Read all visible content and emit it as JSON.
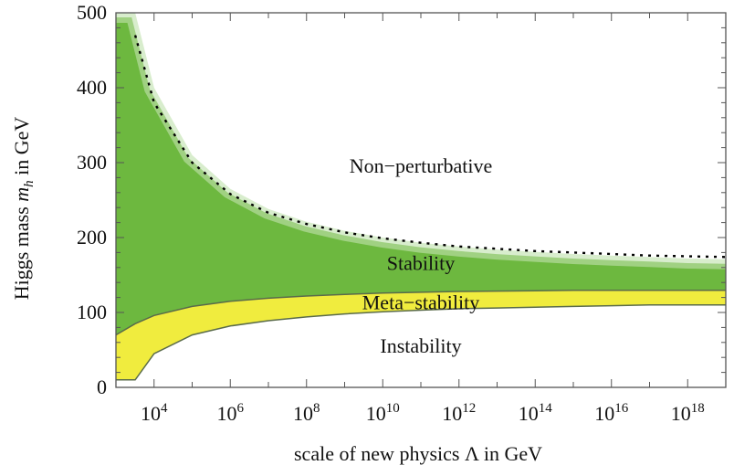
{
  "chart_data": {
    "type": "area",
    "xlabel": "scale of new physics Λ in GeV",
    "ylabel_prefix": "Higgs mass ",
    "ylabel_symbol": "m",
    "ylabel_subscript": "h",
    "ylabel_suffix": " in GeV",
    "x_scale": "log10",
    "xlim": [
      1000,
      1e+19
    ],
    "ylim": [
      0,
      500
    ],
    "x_tick_labels": [
      {
        "base": "10",
        "exp": "4",
        "value": 10000.0
      },
      {
        "base": "10",
        "exp": "6",
        "value": 1000000.0
      },
      {
        "base": "10",
        "exp": "8",
        "value": 100000000.0
      },
      {
        "base": "10",
        "exp": "10",
        "value": 10000000000.0
      },
      {
        "base": "10",
        "exp": "12",
        "value": 1000000000000.0
      },
      {
        "base": "10",
        "exp": "14",
        "value": 100000000000000.0
      },
      {
        "base": "10",
        "exp": "16",
        "value": 1e+16
      },
      {
        "base": "10",
        "exp": "18",
        "value": 1e+18
      }
    ],
    "y_tick_labels": [
      "0",
      "100",
      "200",
      "300",
      "400",
      "500"
    ],
    "y_tick_values": [
      0,
      100,
      200,
      300,
      400,
      500
    ],
    "regions": [
      {
        "label": "Non−perturbative",
        "anchor_x": 100000000000.0,
        "anchor_y": 295
      },
      {
        "label": "Stability",
        "anchor_x": 100000000000.0,
        "anchor_y": 165
      },
      {
        "label": "Meta−stability",
        "anchor_x": 100000000000.0,
        "anchor_y": 113
      },
      {
        "label": "Instability",
        "anchor_x": 100000000000.0,
        "anchor_y": 55
      }
    ],
    "perturbativity_bound": {
      "x": [
        1000,
        3200,
        10000,
        100000.0,
        1000000.0,
        10000000.0,
        100000000.0,
        1000000000.0,
        10000000000.0,
        100000000000.0,
        1000000000000.0,
        10000000000000.0,
        100000000000000.0,
        1000000000000000.0,
        1e+16,
        1e+17,
        1e+18,
        1e+19
      ],
      "y": [
        500,
        500,
        400,
        310,
        265,
        238,
        221,
        209,
        200,
        193,
        188,
        184,
        181,
        178,
        176,
        174,
        172,
        171
      ]
    },
    "stability_bound": {
      "x": [
        1000,
        3200,
        10000,
        100000.0,
        1000000.0,
        10000000.0,
        100000000.0,
        1000000000.0,
        10000000000.0,
        100000000000.0,
        1000000000000.0,
        10000000000000.0,
        100000000000000.0,
        1000000000000000.0,
        1e+16,
        1e+17,
        1e+18,
        1e+19
      ],
      "y": [
        70,
        85,
        96,
        108,
        115,
        119,
        122,
        124,
        126,
        127,
        128,
        128.5,
        129,
        129.5,
        129.5,
        129.5,
        129.5,
        129.5
      ]
    },
    "metastability_bound": {
      "x": [
        1000,
        3200,
        10000,
        100000.0,
        1000000.0,
        10000000.0,
        100000000.0,
        1000000000.0,
        10000000000.0,
        100000000000.0,
        1000000000000.0,
        10000000000000.0,
        100000000000000.0,
        1000000000000000.0,
        1e+16,
        1e+17,
        1e+18,
        1e+19
      ],
      "y": [
        10,
        10,
        45,
        70,
        82,
        89,
        94,
        98,
        101,
        103,
        105,
        106,
        107,
        108,
        109,
        110,
        110,
        110
      ]
    },
    "dotted_curve": {
      "x": [
        3200,
        10000,
        100000.0,
        1000000.0,
        10000000.0,
        100000000.0,
        1000000000.0,
        10000000000.0,
        100000000000.0,
        1000000000000.0,
        10000000000000.0,
        100000000000000.0,
        1000000000000000.0,
        1e+16,
        1e+17,
        1e+18,
        1e+19
      ],
      "y": [
        470,
        380,
        300,
        258,
        233,
        218,
        207,
        199,
        193,
        188,
        185,
        182,
        180,
        178,
        176,
        175,
        174
      ]
    },
    "colors": {
      "stability": "#6db83f",
      "metastability": "#f0ec3e",
      "outline": "#5a6b4a",
      "frame": "#555555"
    }
  }
}
